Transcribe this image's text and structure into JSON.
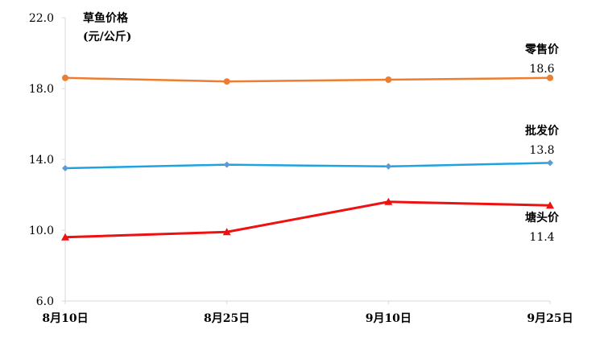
{
  "chart_data": {
    "type": "line",
    "title": "草鱼价格",
    "ylabel": "(元/公斤)",
    "categories": [
      "8月10日",
      "8月25日",
      "9月10日",
      "9月25日"
    ],
    "ylim": [
      6.0,
      22.0
    ],
    "yticks": [
      "6.0",
      "10.0",
      "14.0",
      "18.0",
      "22.0"
    ],
    "grid": false,
    "series": [
      {
        "name": "零售价",
        "values": [
          18.6,
          18.4,
          18.5,
          18.6
        ],
        "color": "#ED7D31",
        "marker": "circle",
        "end_label": "18.6"
      },
      {
        "name": "批发价",
        "values": [
          13.5,
          13.7,
          13.6,
          13.8
        ],
        "color": "#1FA3E0",
        "marker": "diamond",
        "end_label": "13.8"
      },
      {
        "name": "塘头价",
        "values": [
          9.6,
          9.9,
          11.6,
          11.4
        ],
        "color": "#EE1111",
        "marker": "triangle",
        "end_label": "11.4"
      }
    ]
  }
}
